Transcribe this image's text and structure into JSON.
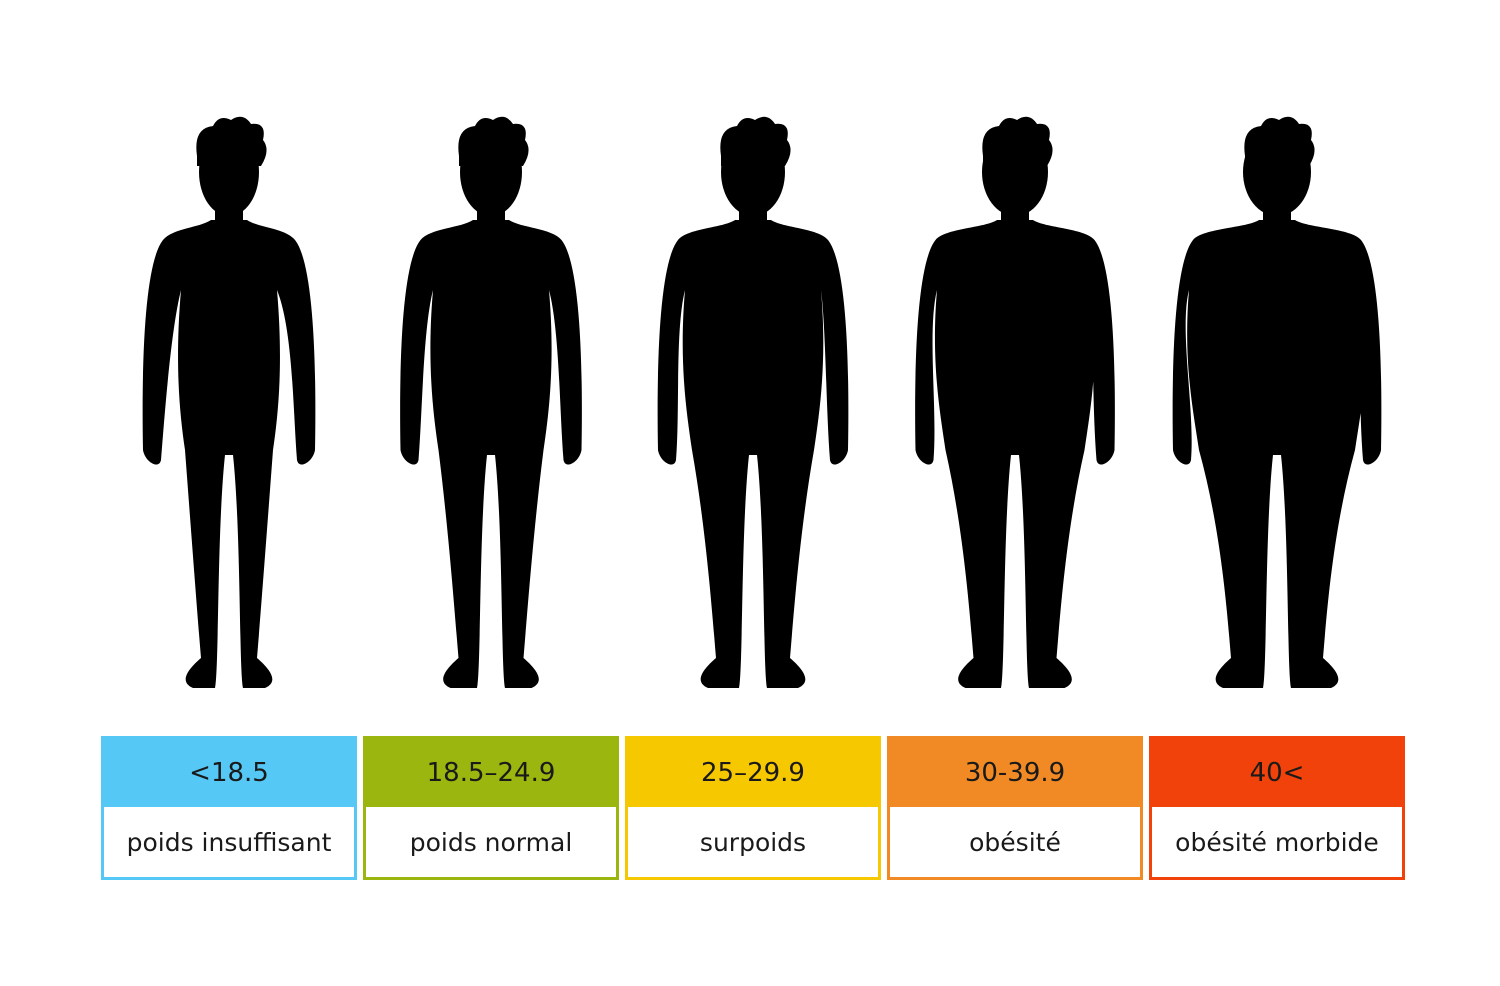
{
  "categories": [
    {
      "range": "<18.5",
      "label": "poids insuffisant",
      "color": "#56c8f5",
      "build": 0.0
    },
    {
      "range": "18.5–24.9",
      "label": "poids normal",
      "color": "#9bb60f",
      "build": 0.25
    },
    {
      "range": "25–29.9",
      "label": "surpoids",
      "color": "#f6c800",
      "build": 0.5
    },
    {
      "range": "30-39.9",
      "label": "obésité",
      "color": "#f18a24",
      "build": 0.75
    },
    {
      "range": "40<",
      "label": "obésité morbide",
      "color": "#f0420a",
      "build": 1.0
    }
  ],
  "icons": {
    "figure": "person-silhouette-icon"
  }
}
